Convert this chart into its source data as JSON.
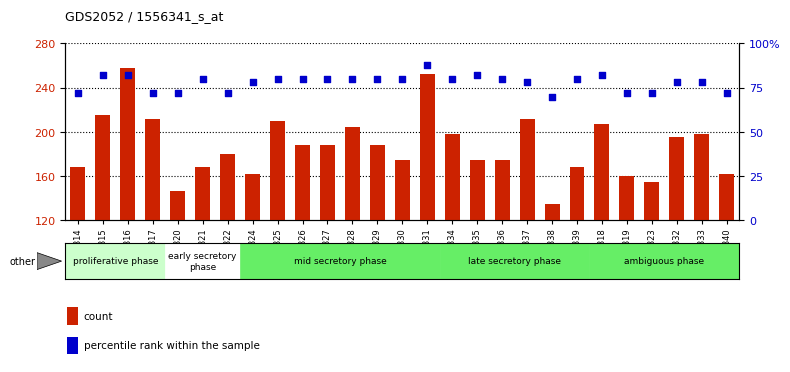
{
  "title": "GDS2052 / 1556341_s_at",
  "samples": [
    "GSM109814",
    "GSM109815",
    "GSM109816",
    "GSM109817",
    "GSM109820",
    "GSM109821",
    "GSM109822",
    "GSM109824",
    "GSM109825",
    "GSM109826",
    "GSM109827",
    "GSM109828",
    "GSM109829",
    "GSM109830",
    "GSM109831",
    "GSM109834",
    "GSM109835",
    "GSM109836",
    "GSM109837",
    "GSM109838",
    "GSM109839",
    "GSM109818",
    "GSM109819",
    "GSM109823",
    "GSM109832",
    "GSM109833",
    "GSM109840"
  ],
  "counts": [
    168,
    215,
    258,
    212,
    147,
    168,
    180,
    162,
    210,
    188,
    188,
    204,
    188,
    175,
    252,
    198,
    175,
    175,
    212,
    135,
    168,
    207,
    160,
    155,
    195,
    198,
    162
  ],
  "percentile_ranks": [
    72,
    82,
    82,
    72,
    72,
    80,
    72,
    78,
    80,
    80,
    80,
    80,
    80,
    80,
    88,
    80,
    82,
    80,
    78,
    70,
    80,
    82,
    72,
    72,
    78,
    78,
    72
  ],
  "phases": [
    {
      "name": "proliferative phase",
      "start": 0,
      "end": 4,
      "color": "#ccffcc"
    },
    {
      "name": "early secretory\nphase",
      "start": 4,
      "end": 7,
      "color": "#ffffff"
    },
    {
      "name": "mid secretory phase",
      "start": 7,
      "end": 15,
      "color": "#66ee66"
    },
    {
      "name": "late secretory phase",
      "start": 15,
      "end": 21,
      "color": "#66ee66"
    },
    {
      "name": "ambiguous phase",
      "start": 21,
      "end": 27,
      "color": "#66ee66"
    }
  ],
  "ylim_left": [
    120,
    280
  ],
  "ylim_right": [
    0,
    100
  ],
  "yticks_left": [
    120,
    160,
    200,
    240,
    280
  ],
  "yticks_right": [
    0,
    25,
    50,
    75,
    100
  ],
  "bar_color": "#cc2200",
  "dot_color": "#0000cc",
  "background_color": "#ffffff",
  "right_axis_color": "#0000cc",
  "left_axis_color": "#cc2200"
}
